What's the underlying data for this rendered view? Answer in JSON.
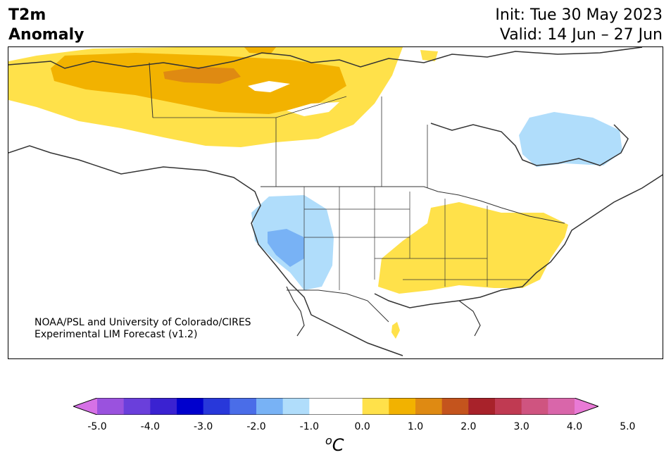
{
  "header": {
    "title_line1": "T2m",
    "title_line2": "Anomaly",
    "init": "Init: Tue 30 May 2023",
    "valid": "Valid: 14 Jun – 27 Jun"
  },
  "credit": {
    "line1": "NOAA/PSL and University of Colorado/CIRES",
    "line2": "Experimental LIM Forecast (v1.2)"
  },
  "colorbar": {
    "ticks": [
      "-5.0",
      "-4.0",
      "-3.0",
      "-2.0",
      "-1.0",
      "0.0",
      "1.0",
      "2.0",
      "3.0",
      "4.0",
      "5.0"
    ],
    "unit_sup": "o",
    "unit": "C",
    "colors": [
      "#d671e6",
      "#9a52de",
      "#6a3fdb",
      "#3a22d1",
      "#0000cd",
      "#2838da",
      "#4a6de8",
      "#78b2f5",
      "#b0ddfb",
      "#ffffff",
      "#ffffff",
      "#ffe14a",
      "#f2b200",
      "#df8a12",
      "#c4541d",
      "#a8222a",
      "#c03a52",
      "#cf5480",
      "#d966aa",
      "#e97ad6"
    ]
  },
  "legend_colors": {
    "anom_pos_weak": "#ffe14a",
    "anom_pos_mid": "#f2b200",
    "anom_pos_strong": "#df8a12",
    "anom_neg_weak": "#b0ddfb",
    "anom_neg_mid": "#78b2f5"
  }
}
